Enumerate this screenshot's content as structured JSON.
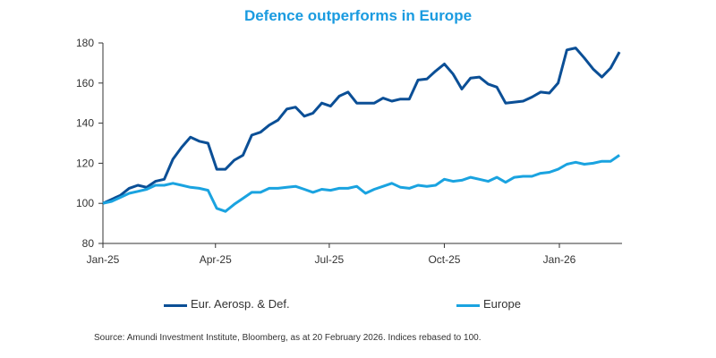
{
  "chart_data": {
    "type": "line",
    "title": "Defence outperforms in Europe",
    "xlabel": "",
    "ylabel": "",
    "ylim": [
      80,
      180
    ],
    "yticks": [
      "80",
      "100",
      "120",
      "140",
      "160",
      "180"
    ],
    "xticks": [
      {
        "label": "Jan-25",
        "date": "2025-01-01"
      },
      {
        "label": "Apr-25",
        "date": "2025-04-01"
      },
      {
        "label": "Jul-25",
        "date": "2025-07-01"
      },
      {
        "label": "Oct-25",
        "date": "2025-10-01"
      },
      {
        "label": "Jan-26",
        "date": "2026-01-01"
      }
    ],
    "grid": false,
    "legend": "bottom",
    "x": [
      "2025-01-01",
      "2025-01-08",
      "2025-01-15",
      "2025-01-22",
      "2025-01-29",
      "2025-02-05",
      "2025-02-12",
      "2025-02-19",
      "2025-02-26",
      "2025-03-05",
      "2025-03-12",
      "2025-03-19",
      "2025-03-26",
      "2025-04-02",
      "2025-04-09",
      "2025-04-16",
      "2025-04-23",
      "2025-04-30",
      "2025-05-07",
      "2025-05-14",
      "2025-05-21",
      "2025-05-28",
      "2025-06-04",
      "2025-06-11",
      "2025-06-18",
      "2025-06-25",
      "2025-07-02",
      "2025-07-09",
      "2025-07-16",
      "2025-07-23",
      "2025-07-30",
      "2025-08-06",
      "2025-08-13",
      "2025-08-20",
      "2025-08-27",
      "2025-09-03",
      "2025-09-10",
      "2025-09-17",
      "2025-09-24",
      "2025-10-01",
      "2025-10-08",
      "2025-10-15",
      "2025-10-22",
      "2025-10-29",
      "2025-11-05",
      "2025-11-12",
      "2025-11-19",
      "2025-11-26",
      "2025-12-03",
      "2025-12-10",
      "2025-12-17",
      "2025-12-24",
      "2025-12-31",
      "2026-01-07",
      "2026-01-14",
      "2026-01-21",
      "2026-01-28",
      "2026-02-04",
      "2026-02-11",
      "2026-02-18"
    ],
    "series": [
      {
        "name": "Eur. Aerosp. & Def.",
        "color": "#0b4f96",
        "values": [
          100,
          102,
          104,
          107.5,
          109,
          108,
          111,
          112,
          122,
          128,
          133,
          131,
          130,
          117,
          117,
          121.5,
          124,
          134,
          135.5,
          139,
          141.5,
          147,
          148,
          143.5,
          145,
          150,
          148.5,
          153.5,
          155.5,
          150,
          150,
          150,
          152.5,
          151,
          152,
          152,
          161.5,
          162,
          166,
          169.5,
          164.5,
          157,
          162.5,
          163,
          159.5,
          158,
          150,
          150.5,
          151,
          153,
          155.5,
          155,
          160,
          176.5,
          177.5,
          172.5,
          167,
          163,
          167.5,
          175.5
        ]
      },
      {
        "name": "Europe",
        "color": "#1aa3e0",
        "values": [
          100,
          101,
          103,
          105,
          106,
          107,
          109,
          109,
          110,
          109,
          108,
          107.5,
          106.5,
          97.5,
          96,
          99.5,
          102.5,
          105.5,
          105.5,
          107.5,
          107.5,
          108,
          108.5,
          107,
          105.5,
          107,
          106.5,
          107.5,
          107.5,
          108.5,
          105,
          107,
          108.5,
          110,
          108,
          107.5,
          109,
          108.5,
          109,
          112,
          111,
          111.5,
          113,
          112,
          111,
          113,
          110.5,
          113,
          113.5,
          113.5,
          115,
          115.5,
          117,
          119.5,
          120.5,
          119.5,
          120,
          121,
          121,
          124
        ]
      }
    ]
  },
  "source": "Source: Amundi Investment Institute, Bloomberg, as at 20 February 2026. Indices rebased to 100."
}
